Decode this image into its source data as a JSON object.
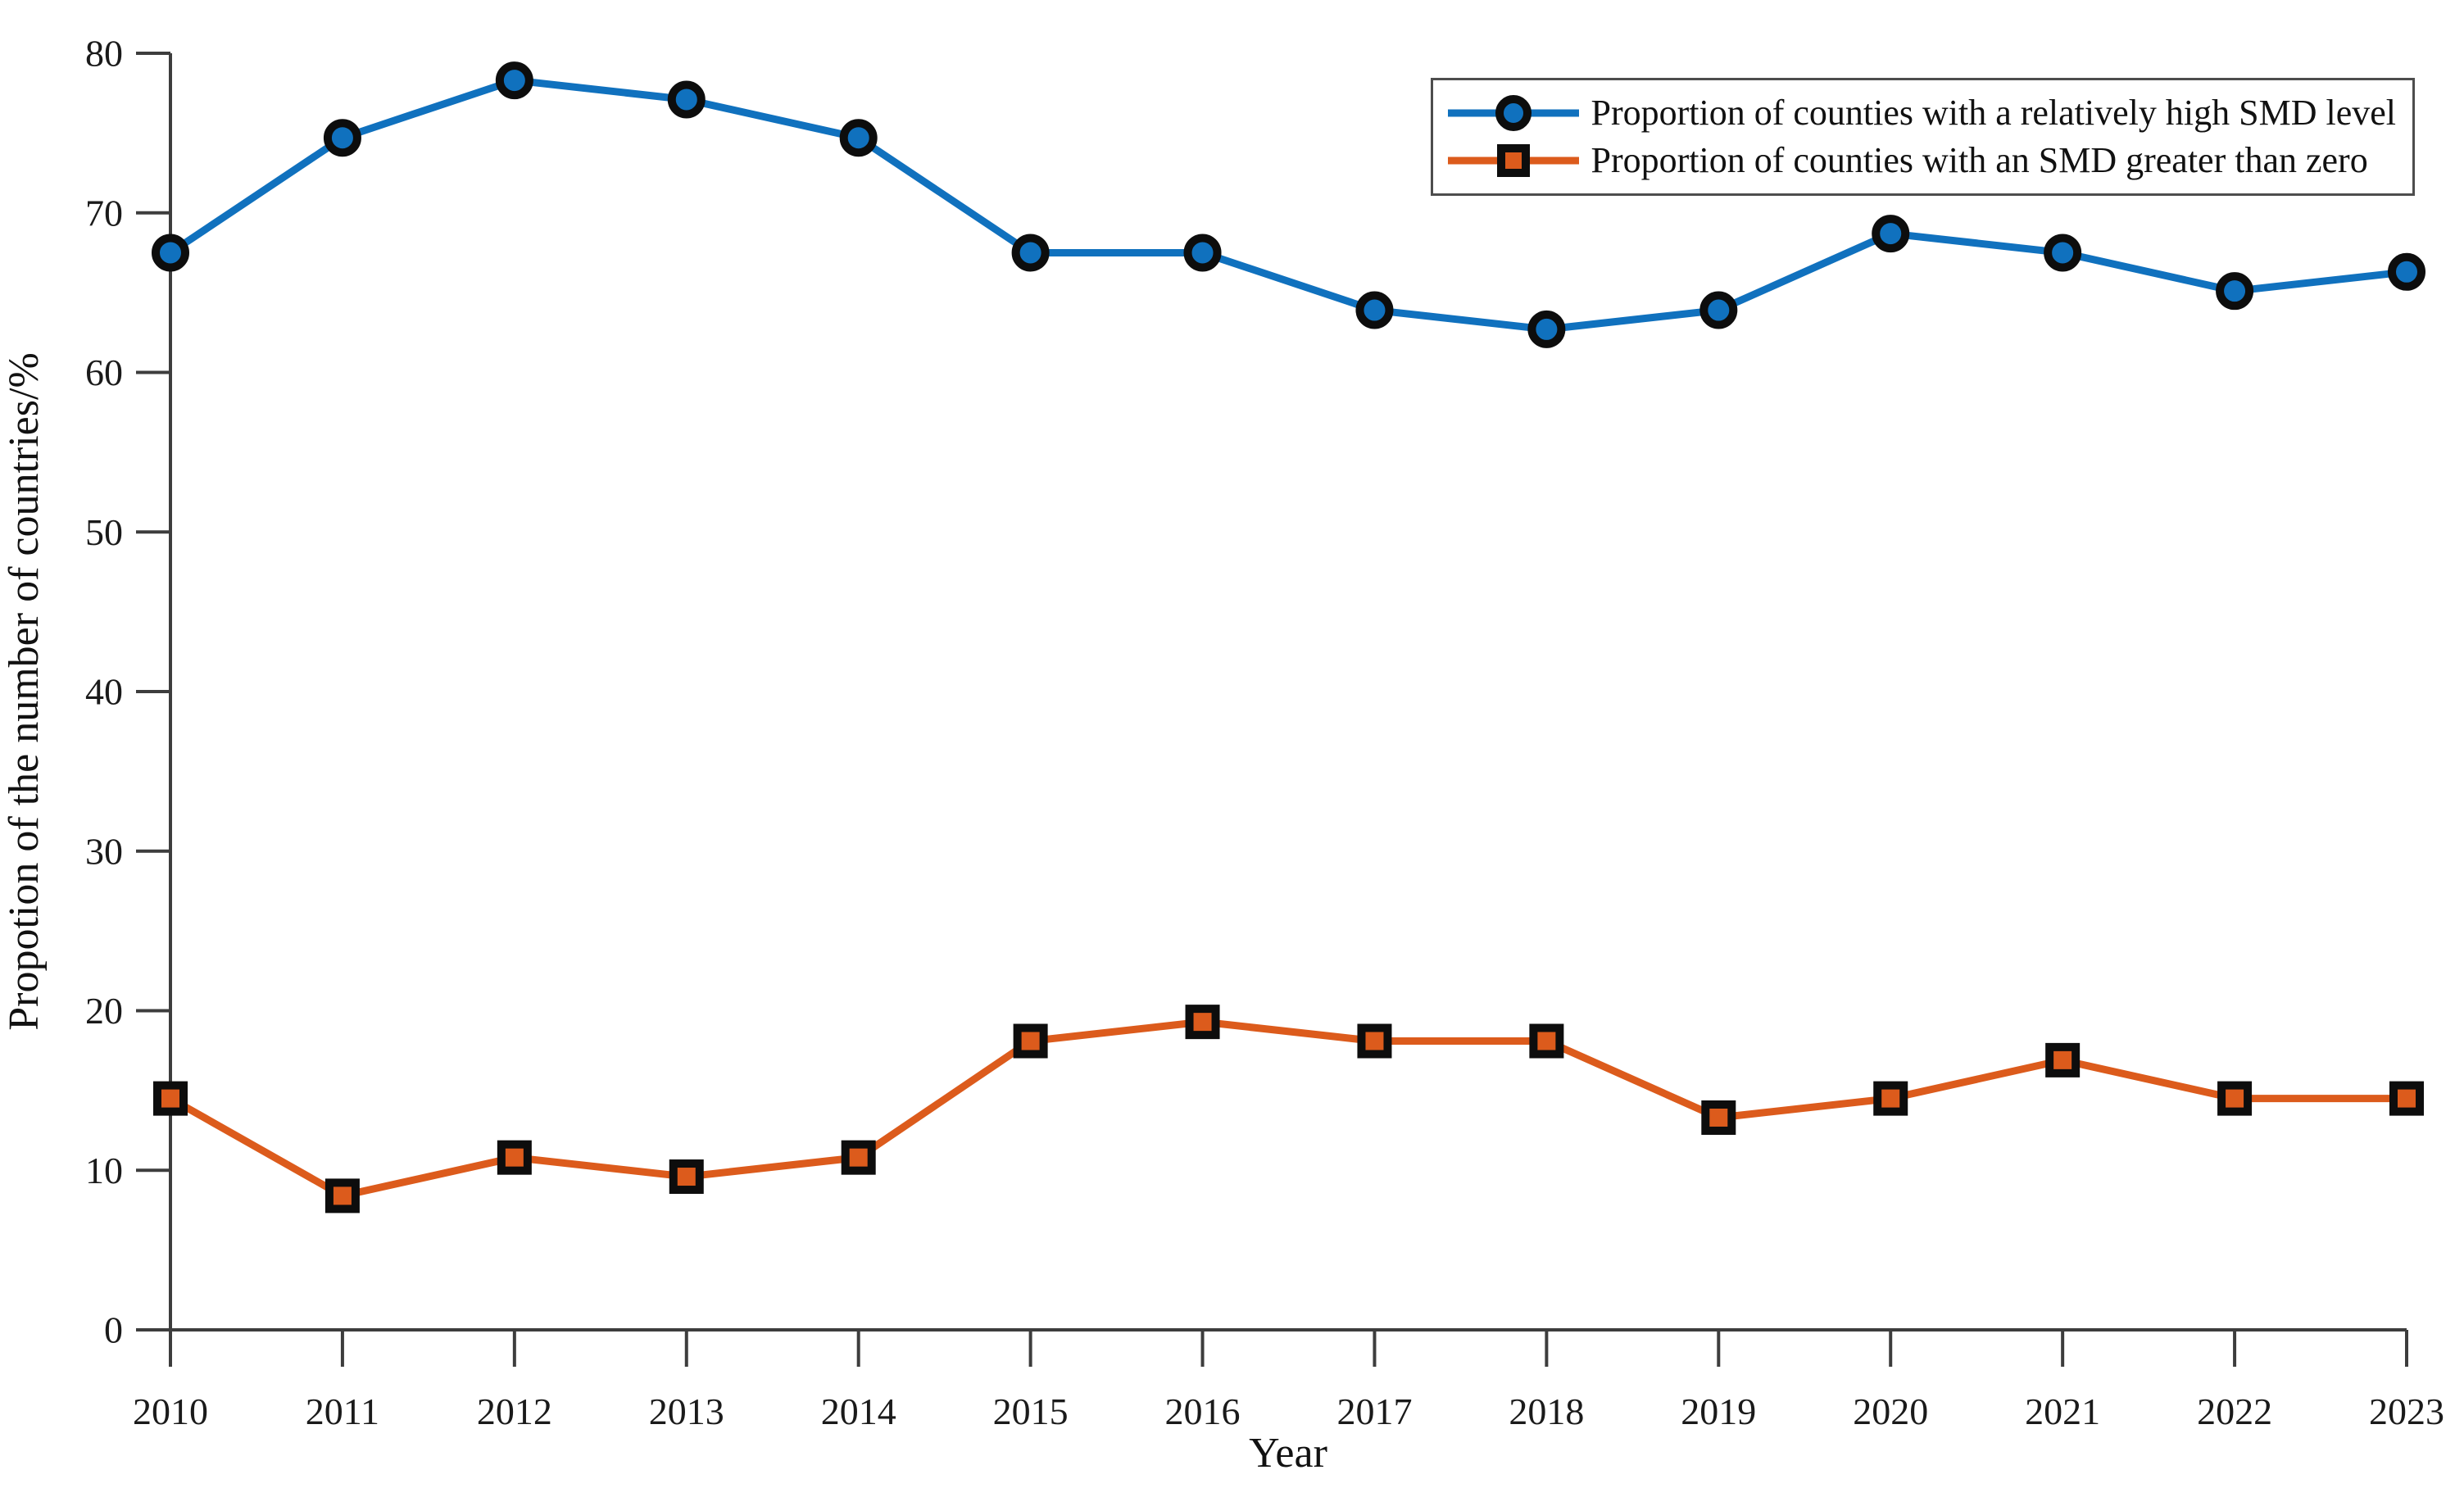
{
  "figure": {
    "background": "#ffffff"
  },
  "chart_data": {
    "type": "line",
    "title": "",
    "xlabel": "Year",
    "ylabel": "Propotion of the number of countries/%",
    "x": [
      2010,
      2011,
      2012,
      2013,
      2014,
      2015,
      2016,
      2017,
      2018,
      2019,
      2020,
      2021,
      2022,
      2023
    ],
    "ylim": [
      0,
      80
    ],
    "yticks": [
      0,
      10,
      20,
      30,
      40,
      50,
      60,
      70,
      80
    ],
    "grid": false,
    "legend_position": "top-right",
    "series": [
      {
        "name": "Proportion of counties with a relatively high SMD level",
        "marker": "circle",
        "color": "#1071BE",
        "marker_edge_color": "#0d0d0d",
        "values": [
          67.5,
          74.7,
          78.3,
          77.1,
          74.7,
          67.5,
          67.5,
          63.9,
          62.7,
          63.9,
          68.7,
          67.5,
          65.1,
          66.3
        ]
      },
      {
        "name": "Proportion of counties with an SMD greater than zero",
        "marker": "square",
        "color": "#DC5B1C",
        "marker_edge_color": "#0d0d0d",
        "values": [
          14.5,
          8.4,
          10.8,
          9.6,
          10.8,
          18.1,
          19.3,
          18.1,
          18.1,
          13.3,
          14.5,
          16.9,
          14.5,
          14.5
        ]
      }
    ],
    "axis_color": "#3d3d3d"
  }
}
